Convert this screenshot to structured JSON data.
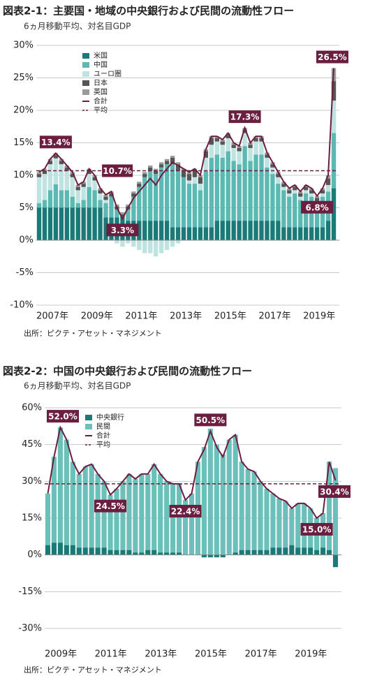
{
  "chart_data": [
    {
      "type": "bar",
      "stacked": true,
      "title": "図表2-1：主要国・地域の中央銀行および民間の流動性フロー",
      "subtitle": "6ヵ月移動平均、対名目GDP",
      "source": "出所：ピクテ・アセット・マネジメント",
      "categories": [
        "2007年",
        null,
        null,
        null,
        null,
        null,
        null,
        null,
        "2009年",
        null,
        null,
        null,
        null,
        null,
        null,
        null,
        "2011年",
        null,
        null,
        null,
        null,
        null,
        null,
        null,
        "2013年",
        null,
        null,
        null,
        null,
        null,
        null,
        null,
        "2015年",
        null,
        null,
        null,
        null,
        null,
        null,
        null,
        "2017年",
        null,
        null,
        null,
        null,
        null,
        null,
        null,
        "2019年",
        null,
        null,
        null,
        null,
        null
      ],
      "series": [
        {
          "name": "米国",
          "color": "#1a7a78",
          "values": [
            5,
            5,
            5,
            5,
            5,
            5,
            5,
            5,
            5,
            5,
            5,
            5,
            3.5,
            3.5,
            3.5,
            3.5,
            3,
            3,
            3,
            3,
            3,
            3,
            3,
            3,
            2,
            2,
            2,
            2,
            2,
            2,
            2,
            2,
            3,
            3,
            3,
            3,
            3,
            3,
            3,
            3,
            3,
            3,
            3,
            3,
            2,
            2,
            2,
            2,
            2,
            2,
            2,
            2,
            3,
            8
          ]
        },
        {
          "name": "中国",
          "color": "#5cb8b2",
          "values": [
            0.7,
            1.2,
            2.7,
            3.6,
            2.7,
            2.7,
            1.7,
            0.7,
            1.2,
            3.2,
            2.7,
            1.2,
            2.2,
            3.2,
            1.2,
            0,
            1.7,
            3.7,
            5.2,
            6.7,
            7.7,
            7.2,
            8.2,
            8.7,
            9.7,
            8.7,
            7.7,
            6.7,
            6.7,
            5.7,
            8.7,
            10.7,
            10.2,
            9.7,
            10.7,
            9.2,
            8.7,
            11.5,
            9.2,
            10.2,
            10.2,
            8.2,
            7.2,
            5.7,
            5.7,
            4.7,
            5.2,
            4.2,
            5.2,
            4.7,
            3.5,
            4.7,
            4.5,
            8.5
          ]
        },
        {
          "name": "ユーロ圏",
          "color": "#bfe3e0",
          "values": [
            4,
            4,
            4,
            4,
            4,
            3,
            3,
            2,
            2,
            2,
            1.5,
            1,
            0.5,
            0,
            -0.5,
            -1,
            -0.5,
            -1,
            -1.5,
            -2,
            -2,
            -2.5,
            -2,
            -1.5,
            -1,
            -0.5,
            0,
            0.5,
            1,
            1,
            2,
            2,
            2,
            2,
            2,
            2,
            2,
            2,
            2,
            2,
            2,
            1.5,
            1,
            1,
            0.5,
            0.5,
            0.5,
            0.5,
            0.5,
            0.5,
            0.5,
            0.5,
            1,
            5
          ]
        },
        {
          "name": "日本",
          "color": "#555555",
          "values": [
            0.5,
            0.5,
            0.5,
            0.5,
            0.5,
            0.5,
            0.5,
            0.5,
            0.5,
            0.5,
            0.5,
            0.5,
            0.5,
            0.5,
            0.5,
            0.5,
            0.5,
            0.5,
            0.5,
            0.5,
            0.5,
            0.5,
            0.5,
            0.5,
            1,
            1,
            1,
            1,
            1,
            1,
            1,
            1,
            0.5,
            0.5,
            0.5,
            0.5,
            0.5,
            0.5,
            0.5,
            0.5,
            0.5,
            0.5,
            0.5,
            0.5,
            0.5,
            0.5,
            0.5,
            0.5,
            0.5,
            0.5,
            0.5,
            0.5,
            1,
            3
          ]
        },
        {
          "name": "英国",
          "color": "#9a9a9a",
          "values": [
            0.3,
            0.3,
            0.3,
            0.3,
            0.3,
            0.3,
            0.3,
            0.3,
            0.3,
            0.3,
            0.3,
            0.3,
            0.3,
            0.3,
            0.3,
            0.3,
            0.3,
            0.3,
            0.3,
            0.3,
            0.3,
            0.3,
            0.3,
            0.3,
            0.3,
            0.3,
            0.3,
            0.3,
            0.3,
            0.3,
            0.3,
            0.3,
            0.3,
            0.3,
            0.3,
            0.3,
            0.3,
            0.3,
            0.3,
            0.3,
            0.3,
            0.3,
            0.3,
            0.3,
            0.3,
            0.3,
            0.3,
            0.3,
            0.3,
            0.3,
            0.3,
            0.3,
            0.5,
            2
          ]
        }
      ],
      "total": {
        "name": "合計",
        "color": "#6b1e3f",
        "values": [
          10.5,
          11,
          12.5,
          13.4,
          12.5,
          11.5,
          10.5,
          8.5,
          9,
          11,
          10,
          8,
          7,
          7.5,
          5,
          3.3,
          5,
          6.5,
          7.5,
          8.5,
          9.5,
          8.5,
          10,
          11,
          12,
          11.5,
          11,
          10.5,
          11,
          10,
          14,
          16,
          16,
          15.5,
          16.5,
          15,
          14.5,
          17.3,
          15,
          16,
          16,
          13.5,
          12,
          10.5,
          9,
          8,
          8.5,
          7.5,
          8.5,
          8,
          6.8,
          8,
          10,
          26.5
        ],
        "value_labels": [
          null,
          null,
          null,
          "13.4%",
          null,
          null,
          null,
          null,
          null,
          null,
          null,
          null,
          null,
          null,
          null,
          "3.3%",
          null,
          null,
          null,
          null,
          null,
          null,
          null,
          null,
          null,
          null,
          null,
          null,
          null,
          null,
          null,
          null,
          null,
          null,
          null,
          null,
          null,
          "17.3%",
          null,
          null,
          null,
          null,
          null,
          null,
          null,
          null,
          null,
          null,
          null,
          null,
          "6.8%",
          null,
          null,
          "26.5%"
        ]
      },
      "average": {
        "name": "平均",
        "color": "#6b1e3f",
        "value": 10.7,
        "value_label": "10.7%"
      },
      "ylim": [
        -10,
        30
      ],
      "yticks": [
        {
          "value": -10,
          "label": "-10%"
        },
        {
          "value": -5,
          "label": "-5%"
        },
        {
          "value": 0,
          "label": "0%"
        },
        {
          "value": 5,
          "label": "5%"
        },
        {
          "value": 10,
          "label": "10%"
        },
        {
          "value": 15,
          "label": "15%"
        },
        {
          "value": 20,
          "label": "20%"
        },
        {
          "value": 25,
          "label": "25%"
        },
        {
          "value": 30,
          "label": "30%"
        }
      ],
      "grid": true,
      "legend": "top-left"
    },
    {
      "type": "bar",
      "stacked": true,
      "title": "図表2-2：中国の中央銀行および民間の流動性フロー",
      "subtitle": "6ヵ月移動平均、対名目GDP",
      "source": "出所：ピクテ・アセット・マネジメント",
      "categories": [
        "2009年",
        null,
        null,
        null,
        null,
        null,
        null,
        null,
        "2011年",
        null,
        null,
        null,
        null,
        null,
        null,
        null,
        "2013年",
        null,
        null,
        null,
        null,
        null,
        null,
        null,
        "2015年",
        null,
        null,
        null,
        null,
        null,
        null,
        null,
        "2017年",
        null,
        null,
        null,
        null,
        null,
        null,
        null,
        "2019年",
        null,
        null,
        null,
        null,
        null,
        null
      ],
      "series": [
        {
          "name": "中央銀行",
          "color": "#1a7a78",
          "values": [
            4,
            5,
            5,
            4,
            4,
            3,
            3,
            3,
            3,
            3,
            2,
            2,
            2,
            2,
            1,
            1,
            2,
            2,
            1,
            1,
            1,
            1,
            0,
            0,
            0,
            -1,
            -1,
            -1,
            -1,
            0,
            1,
            2,
            2,
            2,
            2,
            2,
            3,
            3,
            3,
            4,
            3,
            3,
            3,
            2,
            3,
            2,
            -5
          ]
        },
        {
          "name": "民間",
          "color": "#6cc0ba",
          "values": [
            21,
            35,
            47,
            43,
            34,
            30,
            33,
            34,
            30,
            27,
            22.5,
            25,
            28,
            31,
            30,
            32,
            31,
            35,
            32,
            29,
            28,
            28,
            22.4,
            25,
            38,
            44,
            51.5,
            45,
            41,
            47,
            48,
            36,
            33,
            32,
            28,
            25,
            22,
            20,
            19,
            15,
            18,
            18,
            16,
            13,
            14,
            36,
            35.4
          ]
        }
      ],
      "total": {
        "name": "合計",
        "color": "#6b1e3f",
        "values": [
          25,
          40,
          52,
          47,
          38,
          33,
          36,
          37,
          33,
          30,
          24.5,
          27,
          30,
          33,
          31,
          33,
          33,
          37,
          33,
          30,
          29,
          29,
          22.4,
          25,
          38,
          43,
          50.5,
          44,
          40,
          47,
          49,
          38,
          35,
          34,
          30,
          27,
          25,
          23,
          22,
          19,
          21,
          21,
          19,
          15,
          17,
          38,
          30.4
        ],
        "value_labels": [
          null,
          null,
          "52.0%",
          null,
          null,
          null,
          null,
          null,
          null,
          null,
          "24.5%",
          null,
          null,
          null,
          null,
          null,
          null,
          null,
          null,
          null,
          null,
          null,
          "22.4%",
          null,
          null,
          null,
          "50.5%",
          null,
          null,
          null,
          null,
          null,
          null,
          null,
          null,
          null,
          null,
          null,
          null,
          null,
          null,
          null,
          null,
          "15.0%",
          null,
          null,
          "30.4%"
        ]
      },
      "average": {
        "name": "平均",
        "color": "#6b1e3f",
        "value": 29
      },
      "ylim": [
        -30,
        60
      ],
      "yticks": [
        {
          "value": -30,
          "label": "-30%"
        },
        {
          "value": -15,
          "label": "-15%"
        },
        {
          "value": 0,
          "label": "0%"
        },
        {
          "value": 15,
          "label": "15%"
        },
        {
          "value": 30,
          "label": "30%"
        },
        {
          "value": 45,
          "label": "45%"
        },
        {
          "value": 60,
          "label": "60%"
        }
      ],
      "grid": true,
      "legend": "top-left"
    }
  ]
}
